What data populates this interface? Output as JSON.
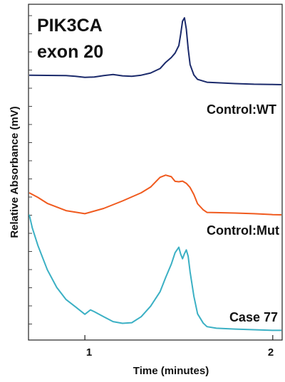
{
  "chart_data": {
    "type": "line",
    "title": "PIK3CA exon 20",
    "title_lines": [
      "PIK3CA",
      "exon 20"
    ],
    "xlabel": "Time (minutes)",
    "ylabel": "Relative Absorbance (mV)",
    "xlim": [
      0.7,
      2.05
    ],
    "x_ticks": [
      1,
      2
    ],
    "y_ticks_labeled": false,
    "grid": false,
    "legend": "none",
    "series": [
      {
        "name": "Control:WT",
        "color": "#1b2a6b",
        "x": [
          0.7,
          0.8,
          0.9,
          0.95,
          1.0,
          1.05,
          1.1,
          1.15,
          1.2,
          1.25,
          1.3,
          1.35,
          1.4,
          1.43,
          1.46,
          1.48,
          1.5,
          1.51,
          1.52,
          1.53,
          1.54,
          1.55,
          1.56,
          1.58,
          1.6,
          1.65,
          1.7,
          1.8,
          1.9,
          2.0,
          2.05
        ],
        "y": [
          0.72,
          0.71,
          0.7,
          0.67,
          0.62,
          0.64,
          0.7,
          0.75,
          0.69,
          0.67,
          0.72,
          0.82,
          1.02,
          1.3,
          1.52,
          1.72,
          2.06,
          2.58,
          3.17,
          3.32,
          2.81,
          1.92,
          1.2,
          0.73,
          0.53,
          0.4,
          0.38,
          0.34,
          0.31,
          0.3,
          0.29
        ]
      },
      {
        "name": "Control:Mut",
        "color": "#f05a1e",
        "x": [
          0.7,
          0.75,
          0.8,
          0.9,
          1.0,
          1.1,
          1.2,
          1.3,
          1.35,
          1.4,
          1.43,
          1.46,
          1.48,
          1.5,
          1.52,
          1.54,
          1.56,
          1.58,
          1.6,
          1.63,
          1.65,
          1.7,
          1.8,
          1.9,
          2.0,
          2.05
        ],
        "y": [
          1.0,
          0.79,
          0.52,
          0.19,
          0.05,
          0.29,
          0.63,
          1.0,
          1.26,
          1.7,
          1.8,
          1.73,
          1.52,
          1.5,
          1.53,
          1.43,
          1.24,
          0.92,
          0.5,
          0.23,
          0.11,
          0.1,
          0.08,
          0.05,
          0.01,
          0.0
        ]
      },
      {
        "name": "Case 77",
        "color": "#3bb0c4",
        "x": [
          0.7,
          0.72,
          0.75,
          0.8,
          0.85,
          0.9,
          0.95,
          1.0,
          1.03,
          1.05,
          1.1,
          1.15,
          1.2,
          1.25,
          1.3,
          1.35,
          1.4,
          1.43,
          1.46,
          1.48,
          1.5,
          1.51,
          1.52,
          1.53,
          1.54,
          1.55,
          1.56,
          1.58,
          1.6,
          1.63,
          1.65,
          1.7,
          1.8,
          1.9,
          2.0,
          2.05
        ],
        "y": [
          5.3,
          4.7,
          3.9,
          2.8,
          2.0,
          1.45,
          1.12,
          0.78,
          0.98,
          0.9,
          0.67,
          0.45,
          0.37,
          0.4,
          0.67,
          1.15,
          1.8,
          2.45,
          3.05,
          3.57,
          3.82,
          3.51,
          3.3,
          3.53,
          3.7,
          3.41,
          2.7,
          1.6,
          0.8,
          0.38,
          0.22,
          0.15,
          0.11,
          0.08,
          0.05,
          0.05
        ]
      }
    ]
  }
}
